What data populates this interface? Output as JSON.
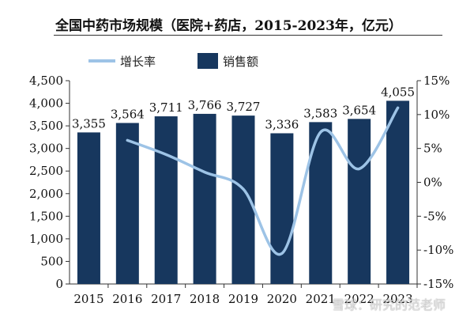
{
  "title": "全国中药市场规模（医院+药店，2015-2023年，亿元）",
  "watermark": "雪球：研究的范老师",
  "colors": {
    "bar": "#17375e",
    "line": "#9dc3e6",
    "axis": "#333333"
  },
  "chart_data": {
    "type": "bar",
    "categories": [
      "2015",
      "2016",
      "2017",
      "2018",
      "2019",
      "2020",
      "2021",
      "2022",
      "2023"
    ],
    "series": [
      {
        "name": "销售额",
        "type": "bar",
        "axis": "left",
        "values": [
          3355,
          3564,
          3711,
          3766,
          3727,
          3336,
          3583,
          3654,
          4055
        ],
        "labels": [
          "3,355",
          "3,564",
          "3,711",
          "3,766",
          "3,727",
          "3,336",
          "3,583",
          "3,654",
          "4,055"
        ]
      },
      {
        "name": "增长率",
        "type": "line",
        "axis": "right",
        "values": [
          null,
          6.2,
          4.1,
          1.5,
          -1.0,
          -10.5,
          7.4,
          2.0,
          11.0
        ]
      }
    ],
    "y_left": {
      "min": 0,
      "max": 4500,
      "step": 500,
      "ticks": [
        "0",
        "500",
        "1,000",
        "1,500",
        "2,000",
        "2,500",
        "3,000",
        "3,500",
        "4,000",
        "4,500"
      ]
    },
    "y_right": {
      "min": -15,
      "max": 15,
      "step": 5,
      "ticks": [
        "-15%",
        "-10%",
        "-5%",
        "0%",
        "5%",
        "10%",
        "15%"
      ]
    },
    "legend": "top-left",
    "grid": false
  }
}
